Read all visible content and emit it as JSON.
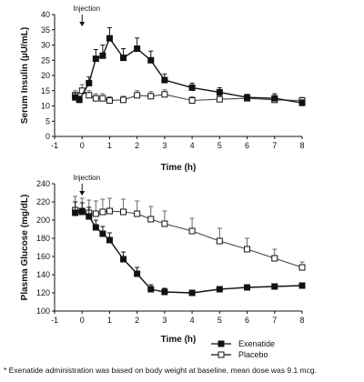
{
  "chart_data": [
    {
      "type": "line",
      "ylabel": "Serum Insulin (µU/mL)",
      "xlabel": "Time (h)",
      "xlim": [
        -1,
        8
      ],
      "ylim": [
        0,
        40
      ],
      "x_ticks": [
        -1,
        0,
        1,
        2,
        3,
        4,
        5,
        6,
        7,
        8
      ],
      "y_ticks": [
        0,
        5,
        10,
        15,
        20,
        25,
        30,
        35,
        40
      ],
      "annotation": {
        "text": "Injection",
        "x": 0
      },
      "grid": false,
      "series": [
        {
          "name": "Exenatide",
          "marker": "filled-square",
          "points": [
            {
              "x": -0.25,
              "y": 12.8,
              "err": 1.5
            },
            {
              "x": -0.1,
              "y": 12.0,
              "err": 1.2
            },
            {
              "x": 0.25,
              "y": 17.5,
              "err": 2.0
            },
            {
              "x": 0.5,
              "y": 25.5,
              "err": 3.0
            },
            {
              "x": 0.75,
              "y": 26.5,
              "err": 3.5
            },
            {
              "x": 1.0,
              "y": 32.2,
              "err": 3.5
            },
            {
              "x": 1.5,
              "y": 25.8,
              "err": 3.0
            },
            {
              "x": 2.0,
              "y": 28.8,
              "err": 3.5
            },
            {
              "x": 2.5,
              "y": 25.0,
              "err": 3.0
            },
            {
              "x": 3.0,
              "y": 18.5,
              "err": 2.0
            },
            {
              "x": 4.0,
              "y": 16.0,
              "err": 1.5
            },
            {
              "x": 5.0,
              "y": 14.5,
              "err": 1.5
            },
            {
              "x": 6.0,
              "y": 12.8,
              "err": 1.0
            },
            {
              "x": 7.0,
              "y": 12.5,
              "err": 1.5
            },
            {
              "x": 8.0,
              "y": 11.0,
              "err": 1.0
            }
          ]
        },
        {
          "name": "Placebo",
          "marker": "open-square",
          "points": [
            {
              "x": -0.25,
              "y": 13.5,
              "err": 1.5
            },
            {
              "x": 0.0,
              "y": 15.0,
              "err": 2.0
            },
            {
              "x": 0.25,
              "y": 13.5,
              "err": 1.5
            },
            {
              "x": 0.5,
              "y": 12.5,
              "err": 1.5
            },
            {
              "x": 0.75,
              "y": 12.5,
              "err": 1.5
            },
            {
              "x": 1.0,
              "y": 11.8,
              "err": 1.2
            },
            {
              "x": 1.5,
              "y": 12.0,
              "err": 1.2
            },
            {
              "x": 2.0,
              "y": 13.5,
              "err": 1.5
            },
            {
              "x": 2.5,
              "y": 13.2,
              "err": 1.5
            },
            {
              "x": 3.0,
              "y": 13.8,
              "err": 1.5
            },
            {
              "x": 4.0,
              "y": 11.8,
              "err": 1.2
            },
            {
              "x": 5.0,
              "y": 12.2,
              "err": 1.2
            },
            {
              "x": 6.0,
              "y": 12.5,
              "err": 1.0
            },
            {
              "x": 7.0,
              "y": 12.0,
              "err": 1.0
            },
            {
              "x": 8.0,
              "y": 11.8,
              "err": 1.0
            }
          ]
        }
      ]
    },
    {
      "type": "line",
      "ylabel": "Plasma Glucose (mg/dL)",
      "xlabel": "Time (h)",
      "xlim": [
        -1,
        8
      ],
      "ylim": [
        100,
        240
      ],
      "x_ticks": [
        -1,
        0,
        1,
        2,
        3,
        4,
        5,
        6,
        7,
        8
      ],
      "y_ticks": [
        100,
        120,
        140,
        160,
        180,
        200,
        220,
        240
      ],
      "annotation": {
        "text": "Injection",
        "x": 0
      },
      "grid": false,
      "series": [
        {
          "name": "Exenatide",
          "marker": "filled-square",
          "points": [
            {
              "x": -0.25,
              "y": 208,
              "err": 12
            },
            {
              "x": 0.0,
              "y": 209,
              "err": 10
            },
            {
              "x": 0.25,
              "y": 204,
              "err": 10
            },
            {
              "x": 0.5,
              "y": 192,
              "err": 8
            },
            {
              "x": 0.75,
              "y": 185,
              "err": 8
            },
            {
              "x": 1.0,
              "y": 178,
              "err": 8
            },
            {
              "x": 1.5,
              "y": 157,
              "err": 8
            },
            {
              "x": 2.0,
              "y": 141,
              "err": 7
            },
            {
              "x": 2.5,
              "y": 124,
              "err": 5
            },
            {
              "x": 3.0,
              "y": 121,
              "err": 4
            },
            {
              "x": 4.0,
              "y": 120,
              "err": 3
            },
            {
              "x": 5.0,
              "y": 124,
              "err": 3
            },
            {
              "x": 6.0,
              "y": 126,
              "err": 3
            },
            {
              "x": 7.0,
              "y": 127,
              "err": 3
            },
            {
              "x": 8.0,
              "y": 128,
              "err": 3
            }
          ]
        },
        {
          "name": "Placebo",
          "marker": "open-square",
          "points": [
            {
              "x": -0.25,
              "y": 211,
              "err": 15
            },
            {
              "x": 0.0,
              "y": 210,
              "err": 14
            },
            {
              "x": 0.25,
              "y": 208,
              "err": 14
            },
            {
              "x": 0.5,
              "y": 207,
              "err": 14
            },
            {
              "x": 0.75,
              "y": 209,
              "err": 14
            },
            {
              "x": 1.0,
              "y": 210,
              "err": 14
            },
            {
              "x": 1.5,
              "y": 209,
              "err": 14
            },
            {
              "x": 2.0,
              "y": 207,
              "err": 14
            },
            {
              "x": 2.5,
              "y": 201,
              "err": 14
            },
            {
              "x": 3.0,
              "y": 196,
              "err": 14
            },
            {
              "x": 4.0,
              "y": 188,
              "err": 14
            },
            {
              "x": 5.0,
              "y": 177,
              "err": 14
            },
            {
              "x": 6.0,
              "y": 168,
              "err": 12
            },
            {
              "x": 7.0,
              "y": 158,
              "err": 10
            },
            {
              "x": 8.0,
              "y": 148,
              "err": 6
            }
          ]
        }
      ]
    }
  ],
  "legend": {
    "placement": "bottom-right",
    "items": [
      {
        "label": "Exenatide",
        "marker": "filled-square"
      },
      {
        "label": "Placebo",
        "marker": "open-square"
      }
    ]
  },
  "footnote": "* Exenatide administration was based on body weight at baseline, mean dose was 9.1 mcg."
}
